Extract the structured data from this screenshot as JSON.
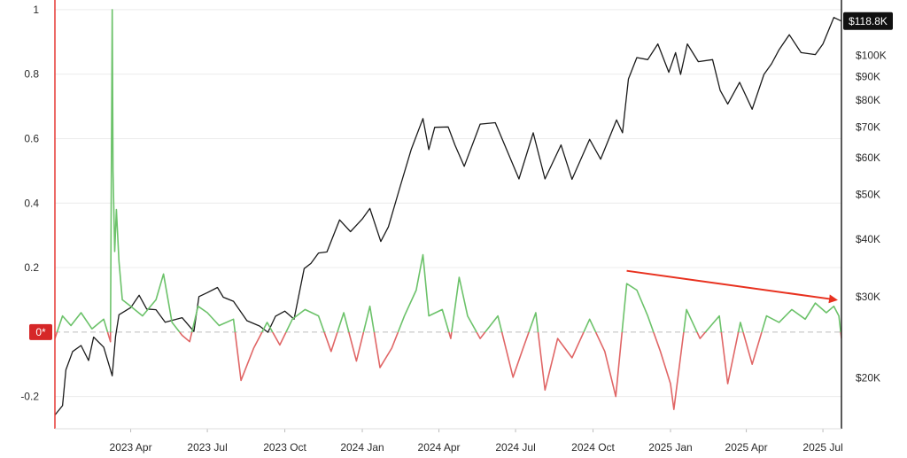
{
  "chart_data": {
    "type": "line",
    "left_axis": {
      "ticks": [
        1,
        0.8,
        0.6,
        0.4,
        0.2,
        -0.2
      ],
      "tick_labels": [
        "1",
        "0.8",
        "0.6",
        "0.4",
        "0.2",
        "-0.2"
      ],
      "range": [
        -0.3,
        1.03
      ],
      "zero_label": "0*",
      "zero_label_color": "#d62728"
    },
    "right_axis": {
      "scale": "log",
      "ticks": [
        100000,
        90000,
        80000,
        70000,
        60000,
        50000,
        40000,
        30000,
        20000
      ],
      "tick_labels": [
        "$100K",
        "$90K",
        "$80K",
        "$70K",
        "$60K",
        "$50K",
        "$40K",
        "$30K",
        "$20K"
      ],
      "range": [
        15500,
        132000
      ],
      "last_value_label": "$118.8K"
    },
    "x_axis": {
      "ticks": [
        "2023-04-01",
        "2023-07-01",
        "2023-10-01",
        "2024-01-01",
        "2024-04-01",
        "2024-07-01",
        "2024-10-01",
        "2025-01-01",
        "2025-04-01",
        "2025-07-01"
      ],
      "tick_labels": [
        "2023 Apr",
        "2023 Jul",
        "2023 Oct",
        "2024 Jan",
        "2024 Apr",
        "2024 Jul",
        "2024 Oct",
        "2025 Jan",
        "2025 Apr",
        "2025 Jul"
      ],
      "range": [
        "2023-01-01",
        "2025-07-23"
      ]
    },
    "grid": true,
    "series": [
      {
        "axis": "right",
        "color": "#1a1a1a",
        "points": [
          [
            "2023-01-01",
            16600
          ],
          [
            "2023-01-10",
            17400
          ],
          [
            "2023-01-14",
            20800
          ],
          [
            "2023-01-22",
            22800
          ],
          [
            "2023-02-01",
            23500
          ],
          [
            "2023-02-10",
            21800
          ],
          [
            "2023-02-16",
            24500
          ],
          [
            "2023-02-28",
            23300
          ],
          [
            "2023-03-10",
            20200
          ],
          [
            "2023-03-14",
            24600
          ],
          [
            "2023-03-18",
            27400
          ],
          [
            "2023-04-01",
            28400
          ],
          [
            "2023-04-11",
            30200
          ],
          [
            "2023-04-20",
            28200
          ],
          [
            "2023-05-01",
            28100
          ],
          [
            "2023-05-12",
            26400
          ],
          [
            "2023-06-01",
            27000
          ],
          [
            "2023-06-15",
            25200
          ],
          [
            "2023-06-21",
            30000
          ],
          [
            "2023-07-01",
            30600
          ],
          [
            "2023-07-13",
            31400
          ],
          [
            "2023-07-20",
            29900
          ],
          [
            "2023-08-01",
            29300
          ],
          [
            "2023-08-17",
            26600
          ],
          [
            "2023-09-01",
            25900
          ],
          [
            "2023-09-11",
            25100
          ],
          [
            "2023-09-20",
            27200
          ],
          [
            "2023-10-01",
            27900
          ],
          [
            "2023-10-12",
            26800
          ],
          [
            "2023-10-24",
            34500
          ],
          [
            "2023-11-01",
            35400
          ],
          [
            "2023-11-10",
            37300
          ],
          [
            "2023-11-20",
            37500
          ],
          [
            "2023-12-05",
            44000
          ],
          [
            "2023-12-18",
            41500
          ],
          [
            "2024-01-01",
            44200
          ],
          [
            "2024-01-10",
            46600
          ],
          [
            "2024-01-23",
            39500
          ],
          [
            "2024-02-01",
            42500
          ],
          [
            "2024-02-15",
            52000
          ],
          [
            "2024-02-28",
            62500
          ],
          [
            "2024-03-13",
            73000
          ],
          [
            "2024-03-20",
            62500
          ],
          [
            "2024-03-27",
            69900
          ],
          [
            "2024-04-12",
            70000
          ],
          [
            "2024-04-20",
            64000
          ],
          [
            "2024-05-01",
            57500
          ],
          [
            "2024-05-20",
            71000
          ],
          [
            "2024-06-07",
            71500
          ],
          [
            "2024-06-24",
            60300
          ],
          [
            "2024-07-05",
            54000
          ],
          [
            "2024-07-22",
            68000
          ],
          [
            "2024-08-05",
            54000
          ],
          [
            "2024-08-24",
            64000
          ],
          [
            "2024-09-06",
            53900
          ],
          [
            "2024-09-27",
            65800
          ],
          [
            "2024-10-10",
            59600
          ],
          [
            "2024-10-29",
            72500
          ],
          [
            "2024-11-05",
            68000
          ],
          [
            "2024-11-12",
            89000
          ],
          [
            "2024-11-22",
            99000
          ],
          [
            "2024-12-05",
            98000
          ],
          [
            "2024-12-17",
            106000
          ],
          [
            "2024-12-30",
            92000
          ],
          [
            "2025-01-07",
            101500
          ],
          [
            "2025-01-13",
            91000
          ],
          [
            "2025-01-21",
            106000
          ],
          [
            "2025-02-03",
            97000
          ],
          [
            "2025-02-20",
            98000
          ],
          [
            "2025-03-01",
            84000
          ],
          [
            "2025-03-10",
            78500
          ],
          [
            "2025-03-24",
            87500
          ],
          [
            "2025-04-08",
            76500
          ],
          [
            "2025-04-22",
            91000
          ],
          [
            "2025-05-01",
            96000
          ],
          [
            "2025-05-10",
            103000
          ],
          [
            "2025-05-22",
            111000
          ],
          [
            "2025-06-05",
            101500
          ],
          [
            "2025-06-22",
            100500
          ],
          [
            "2025-07-01",
            106000
          ],
          [
            "2025-07-14",
            121000
          ],
          [
            "2025-07-23",
            118800
          ]
        ]
      },
      {
        "axis": "left",
        "color_positive": "#6cc26a",
        "color_negative": "#e06666",
        "points": [
          [
            "2023-01-01",
            -0.02
          ],
          [
            "2023-01-10",
            0.05
          ],
          [
            "2023-01-20",
            0.02
          ],
          [
            "2023-02-01",
            0.06
          ],
          [
            "2023-02-14",
            0.01
          ],
          [
            "2023-02-28",
            0.04
          ],
          [
            "2023-03-08",
            -0.03
          ],
          [
            "2023-03-10",
            1.0
          ],
          [
            "2023-03-11",
            0.5
          ],
          [
            "2023-03-13",
            0.25
          ],
          [
            "2023-03-15",
            0.38
          ],
          [
            "2023-03-18",
            0.22
          ],
          [
            "2023-03-22",
            0.1
          ],
          [
            "2023-04-01",
            0.08
          ],
          [
            "2023-04-15",
            0.05
          ],
          [
            "2023-05-01",
            0.1
          ],
          [
            "2023-05-10",
            0.18
          ],
          [
            "2023-05-20",
            0.03
          ],
          [
            "2023-06-01",
            -0.01
          ],
          [
            "2023-06-10",
            -0.03
          ],
          [
            "2023-06-20",
            0.08
          ],
          [
            "2023-07-01",
            0.06
          ],
          [
            "2023-07-15",
            0.02
          ],
          [
            "2023-08-01",
            0.04
          ],
          [
            "2023-08-10",
            -0.15
          ],
          [
            "2023-08-25",
            -0.05
          ],
          [
            "2023-09-10",
            0.03
          ],
          [
            "2023-09-25",
            -0.04
          ],
          [
            "2023-10-10",
            0.04
          ],
          [
            "2023-10-25",
            0.07
          ],
          [
            "2023-11-10",
            0.05
          ],
          [
            "2023-11-25",
            -0.06
          ],
          [
            "2023-12-10",
            0.06
          ],
          [
            "2023-12-25",
            -0.09
          ],
          [
            "2024-01-10",
            0.08
          ],
          [
            "2024-01-22",
            -0.11
          ],
          [
            "2024-02-05",
            -0.05
          ],
          [
            "2024-02-20",
            0.05
          ],
          [
            "2024-03-05",
            0.13
          ],
          [
            "2024-03-13",
            0.24
          ],
          [
            "2024-03-20",
            0.05
          ],
          [
            "2024-04-05",
            0.07
          ],
          [
            "2024-04-15",
            -0.02
          ],
          [
            "2024-04-25",
            0.17
          ],
          [
            "2024-05-05",
            0.05
          ],
          [
            "2024-05-20",
            -0.02
          ],
          [
            "2024-06-10",
            0.05
          ],
          [
            "2024-06-28",
            -0.14
          ],
          [
            "2024-07-10",
            -0.05
          ],
          [
            "2024-07-25",
            0.06
          ],
          [
            "2024-08-05",
            -0.18
          ],
          [
            "2024-08-20",
            -0.02
          ],
          [
            "2024-09-06",
            -0.08
          ],
          [
            "2024-09-27",
            0.04
          ],
          [
            "2024-10-15",
            -0.06
          ],
          [
            "2024-10-28",
            -0.2
          ],
          [
            "2024-11-10",
            0.15
          ],
          [
            "2024-11-22",
            0.13
          ],
          [
            "2024-12-05",
            0.05
          ],
          [
            "2024-12-20",
            -0.06
          ],
          [
            "2025-01-01",
            -0.16
          ],
          [
            "2025-01-05",
            -0.24
          ],
          [
            "2025-01-20",
            0.07
          ],
          [
            "2025-02-05",
            -0.02
          ],
          [
            "2025-02-28",
            0.05
          ],
          [
            "2025-03-10",
            -0.16
          ],
          [
            "2025-03-25",
            0.03
          ],
          [
            "2025-04-08",
            -0.1
          ],
          [
            "2025-04-25",
            0.05
          ],
          [
            "2025-05-10",
            0.03
          ],
          [
            "2025-05-25",
            0.07
          ],
          [
            "2025-06-10",
            0.04
          ],
          [
            "2025-06-22",
            0.09
          ],
          [
            "2025-07-05",
            0.06
          ],
          [
            "2025-07-14",
            0.08
          ],
          [
            "2025-07-20",
            0.05
          ],
          [
            "2025-07-23",
            -0.02
          ]
        ]
      }
    ],
    "annotations": [
      {
        "type": "arrow",
        "color": "#e8311f",
        "from": [
          "2024-11-10",
          0.19
        ],
        "to": [
          "2025-07-23",
          0.1
        ]
      }
    ]
  }
}
